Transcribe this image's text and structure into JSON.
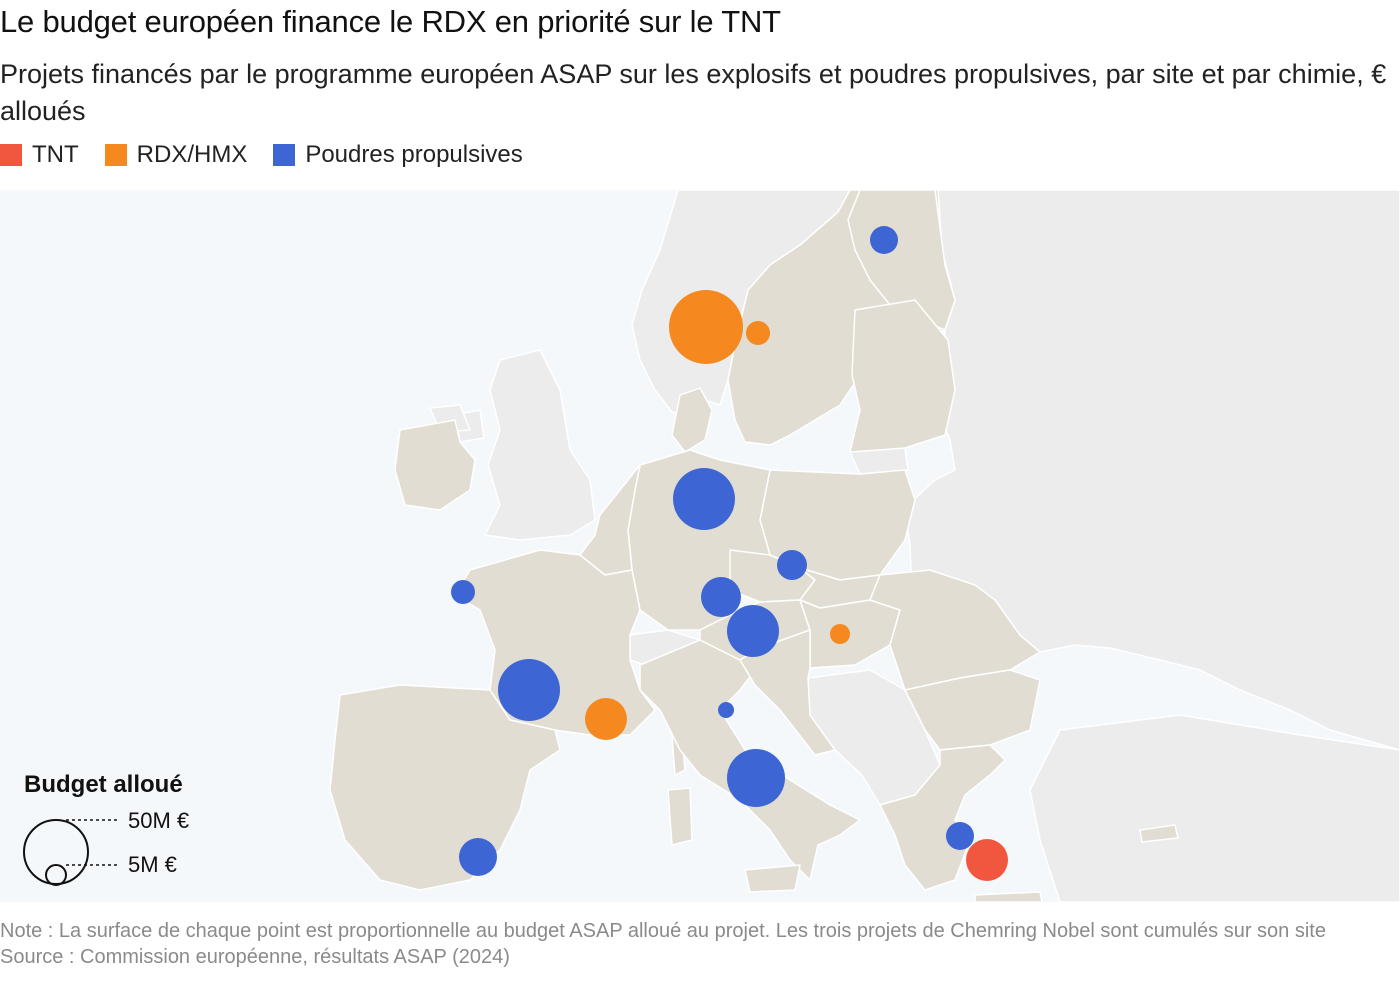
{
  "title": "Le budget européen finance le RDX en priorité sur le TNT",
  "subtitle": "Projets financés par le programme européen ASAP sur les explosifs et poudres propulsives, par site et par chimie, € alloués",
  "legend": [
    {
      "label": "TNT",
      "color": "#f0573e"
    },
    {
      "label": "RDX/HMX",
      "color": "#f5891f"
    },
    {
      "label": "Poudres propulsives",
      "color": "#3d66d4"
    }
  ],
  "size_legend": {
    "title": "Budget alloué",
    "large_label": "50M €",
    "small_label": "5M €",
    "large_value_meur": 50,
    "small_value_meur": 5
  },
  "colors": {
    "sea": "#f4f8fb",
    "eu_land": "#e1ddd3",
    "non_eu_land": "#ececec",
    "border": "#ffffff"
  },
  "points": [
    {
      "chemistry": "Poudres propulsives",
      "area": "Finlande"
    },
    {
      "chemistry": "RDX/HMX",
      "area": "Suède"
    },
    {
      "chemistry": "RDX/HMX",
      "area": "Suède"
    },
    {
      "chemistry": "Poudres propulsives",
      "area": "Allemagne"
    },
    {
      "chemistry": "Poudres propulsives",
      "area": "Tchéquie"
    },
    {
      "chemistry": "Poudres propulsives",
      "area": "Allemagne"
    },
    {
      "chemistry": "Poudres propulsives",
      "area": "Autriche"
    },
    {
      "chemistry": "RDX/HMX",
      "area": "Hongrie"
    },
    {
      "chemistry": "Poudres propulsives",
      "area": "France"
    },
    {
      "chemistry": "Poudres propulsives",
      "area": "France"
    },
    {
      "chemistry": "RDX/HMX",
      "area": "France"
    },
    {
      "chemistry": "Poudres propulsives",
      "area": "Italie"
    },
    {
      "chemistry": "Poudres propulsives",
      "area": "Italie"
    },
    {
      "chemistry": "Poudres propulsives",
      "area": "Espagne"
    },
    {
      "chemistry": "Poudres propulsives",
      "area": "Grèce"
    },
    {
      "chemistry": "TNT",
      "area": "Grèce"
    }
  ],
  "footer": {
    "note": "Note : La surface de chaque point est proportionnelle au budget ASAP alloué au projet. Les trois projets de Chemring Nobel sont cumulés sur son site",
    "source": "Source : Commission européenne, résultats ASAP (2024)"
  }
}
